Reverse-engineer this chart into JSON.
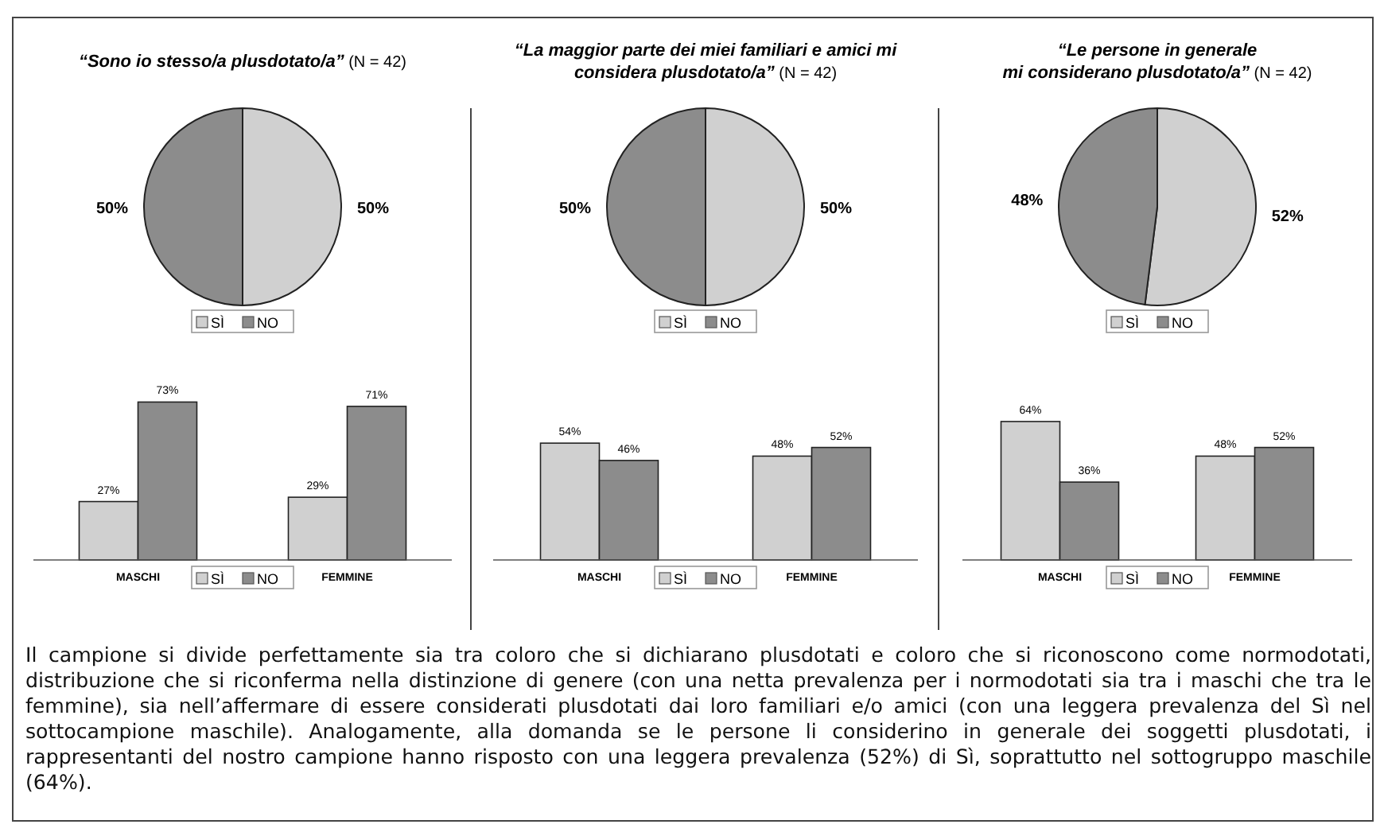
{
  "chart_data": [
    {
      "type": "pie",
      "title": "“Sono io stesso/a plusdotato/a”",
      "subtitle": "(N = 42)",
      "categories": [
        "SÌ",
        "NO"
      ],
      "values": [
        50,
        50
      ],
      "colors": [
        "#d0d0d0",
        "#8c8c8c"
      ],
      "value_labels": [
        "50%",
        "50%"
      ],
      "legend": "bottom"
    },
    {
      "type": "pie",
      "title": "“La maggior parte dei miei familiari e amici mi\nconsidera plusdotato/a”",
      "subtitle": "(N = 42)",
      "categories": [
        "SÌ",
        "NO"
      ],
      "values": [
        50,
        50
      ],
      "colors": [
        "#d0d0d0",
        "#8c8c8c"
      ],
      "value_labels": [
        "50%",
        "50%"
      ],
      "legend": "bottom"
    },
    {
      "type": "pie",
      "title": "“Le persone in generale\nmi considerano plusdotato/a”",
      "subtitle": "(N = 42)",
      "categories": [
        "SÌ",
        "NO"
      ],
      "values": [
        52,
        48
      ],
      "colors": [
        "#d0d0d0",
        "#8c8c8c"
      ],
      "value_labels": [
        "52%",
        "48%"
      ],
      "legend": "bottom"
    },
    {
      "type": "bar",
      "categories": [
        "MASCHI",
        "FEMMINE"
      ],
      "legend": "bottom",
      "series": [
        {
          "name": "SÌ",
          "color": "#d0d0d0",
          "values": [
            27,
            29
          ],
          "value_labels": [
            "27%",
            "29%"
          ]
        },
        {
          "name": "NO",
          "color": "#8c8c8c",
          "values": [
            73,
            71
          ],
          "value_labels": [
            "73%",
            "71%"
          ]
        }
      ]
    },
    {
      "type": "bar",
      "categories": [
        "MASCHI",
        "FEMMINE"
      ],
      "legend": "bottom",
      "series": [
        {
          "name": "SÌ",
          "color": "#d0d0d0",
          "values": [
            54,
            48
          ],
          "value_labels": [
            "54%",
            "48%"
          ]
        },
        {
          "name": "NO",
          "color": "#8c8c8c",
          "values": [
            46,
            52
          ],
          "value_labels": [
            "46%",
            "52%"
          ]
        }
      ]
    },
    {
      "type": "bar",
      "categories": [
        "MASCHI",
        "FEMMINE"
      ],
      "legend": "bottom",
      "series": [
        {
          "name": "SÌ",
          "color": "#d0d0d0",
          "values": [
            64,
            48
          ],
          "value_labels": [
            "64%",
            "48%"
          ]
        },
        {
          "name": "NO",
          "color": "#8c8c8c",
          "values": [
            36,
            52
          ],
          "value_labels": [
            "36%",
            "52%"
          ]
        }
      ]
    },
    {
      "type": "other",
      "annotations": [
        "Il campione si divide perfettamente sia tra coloro che si dichiarano plusdotati e coloro che si riconoscono come normodotati, distribuzione che si riconferma nella distinzione di genere (con una netta prevalenza per i normodotati sia tra i maschi che tra le femmine), sia nell’affermare di essere considerati plusdotati dai loro familiari e/o amici (con una leggera prevalenza del Sì nel sottocampione maschile). Analogamente, alla domanda se le persone li considerino in generale dei soggetti plusdotati, i rappresentanti del nostro campione hanno risposto con una leggera prevalenza (52%) di Sì, soprattutto nel sottogruppo maschile (64%)."
      ]
    }
  ]
}
